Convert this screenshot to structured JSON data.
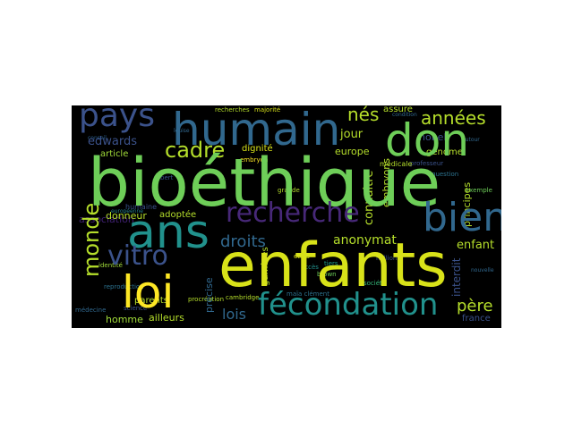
{
  "colors": {
    "background": "#000000",
    "page": "#ffffff"
  },
  "words": {
    "bioethique": "bioéthique",
    "enfants": "enfants",
    "humain": "humain",
    "don": "don",
    "ans": "ans",
    "loi": "loi",
    "pays": "pays",
    "monde": "monde",
    "bien": "bien",
    "recherche": "recherche",
    "fecondation": "fécondation",
    "vitro": "vitro",
    "annees": "années",
    "nes": "nés",
    "cadre": "cadre",
    "droits": "droits",
    "lois": "lois",
    "edwards": "edwards",
    "jour": "jour",
    "anonymat": "anonymat",
    "enfant": "enfant",
    "pere": "père",
    "dignite": "dignité",
    "europe": "europe",
    "article": "article",
    "donneur": "donneur",
    "adoptee": "adoptée",
    "embryons": "embryons",
    "connaitre": "connaître",
    "interdit": "interdit",
    "principes": "principes",
    "genome": "génome",
    "nobel": "nobel",
    "precise": "précise",
    "parents": "parents",
    "homme": "homme",
    "ailleurs": "ailleurs",
    "france": "france",
    "gametes": "gamètes",
    "association": "association",
    "assure": "assure",
    "humaine": "humaine",
    "majorite": "majorité",
    "recherches": "recherches",
    "medicale": "médicale",
    "embryon": "embryon",
    "science": "science",
    "procreation": "procréation",
    "identite": "identité",
    "etats": "états",
    "cambridge": "cambridge",
    "brown": "brown",
    "clement": "maïa clément",
    "tiers": "tiers",
    "societe": "société",
    "millions": "millions",
    "exemple": "exemple",
    "professeur": "professeur",
    "autour": "autour",
    "conseil": "conseil",
    "louise": "louise",
    "europeenne": "européenne",
    "robert": "robert",
    "question": "question",
    "condition": "condition",
    "medecine": "médecine",
    "nouvelle": "nouvelle",
    "acces": "accès",
    "reproduction": "reproduction",
    "grande": "grande"
  }
}
